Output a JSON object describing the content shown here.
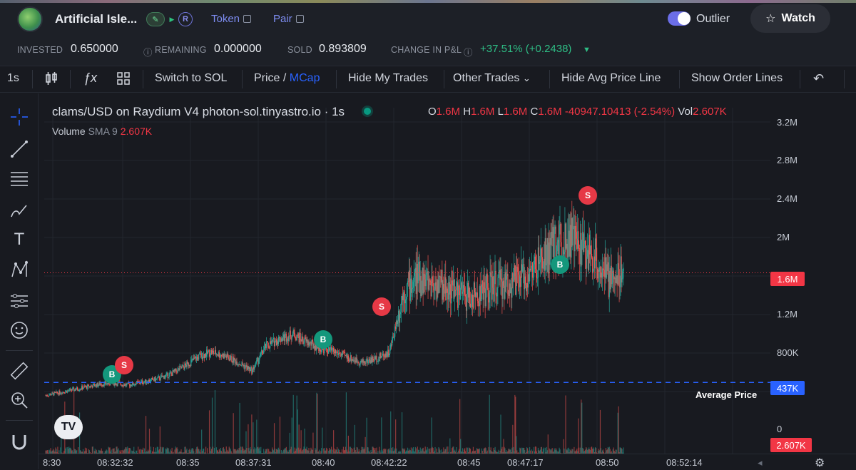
{
  "header": {
    "title": "Artificial Isle...",
    "chip_r": "R",
    "token_label": "Token",
    "pair_label": "Pair",
    "outlier_label": "Outlier",
    "watch_label": "Watch"
  },
  "stats": {
    "invested_label": "INVESTED",
    "invested_value": "0.650000",
    "remaining_label": "REMAINING",
    "remaining_value": "0.000000",
    "sold_label": "SOLD",
    "sold_value": "0.893809",
    "pnl_label": "CHANGE IN P&L",
    "pnl_value": "+37.51% (+0.2438)"
  },
  "toolbar": {
    "interval": "1s",
    "switch": "Switch to SOL",
    "price": "Price /",
    "mcap": "MCap",
    "hide_trades": "Hide My Trades",
    "other_trades": "Other Trades",
    "hide_avg": "Hide Avg Price Line",
    "show_orders": "Show Order Lines"
  },
  "legend": {
    "symbol": "clams/USD on Raydium V4 photon-sol.tinyastro.io · 1s",
    "o_label": "O",
    "o": "1.6M",
    "h_label": "H",
    "h": "1.6M",
    "l_label": "L",
    "l": "1.6M",
    "c_label": "C",
    "c": "1.6M",
    "change": "-40947.10413 (-2.54%)",
    "vol_label": "Vol",
    "vol": "2.607K",
    "volume_label": "Volume",
    "sma_label": "SMA 9",
    "sma_value": "2.607K"
  },
  "axis": {
    "y_ticks": [
      "3.2M",
      "2.8M",
      "2.4M",
      "2M",
      "1.2M",
      "800K",
      "0"
    ],
    "price_label": "1.6M",
    "avg_label": "437K",
    "vol_label": "2.607K",
    "avg_text": "Average Price",
    "x_ticks": [
      "8:30",
      "08:32:32",
      "08:35",
      "08:37:31",
      "08:40",
      "08:42:22",
      "08:45",
      "08:47:17",
      "08:50",
      "08:52:14"
    ]
  },
  "markers": [
    "B",
    "S",
    "B",
    "S",
    "B",
    "S"
  ],
  "chart_data": {
    "type": "candlestick",
    "y_unit": "market cap (USD)",
    "ylim": [
      0,
      3200000
    ],
    "last_price": 1600000,
    "average_price": 437000,
    "price_path": [
      300000,
      330000,
      360000,
      390000,
      420000,
      430000,
      410000,
      440000,
      470000,
      520000,
      600000,
      700000,
      760000,
      720000,
      650000,
      560000,
      820000,
      900000,
      950000,
      860000,
      800000,
      760000,
      700000,
      650000,
      690000,
      760000,
      1400000,
      1550000,
      1500000,
      1450000,
      1380000,
      1330000,
      1420000,
      1480000,
      1500000,
      1560000,
      1700000,
      1900000,
      2000000,
      1850000,
      1750000,
      1500000,
      1650000
    ],
    "trades": [
      {
        "side": "B",
        "price": 430000
      },
      {
        "side": "S",
        "price": 500000
      },
      {
        "side": "B",
        "price": 850000
      },
      {
        "side": "S",
        "price": 1300000
      },
      {
        "side": "B",
        "price": 1660000
      },
      {
        "side": "S",
        "price": 2450000
      }
    ]
  },
  "colors": {
    "up": "#26a69a",
    "down": "#ef5350",
    "avg_line": "#2962ff",
    "accent": "#7d8cf0"
  }
}
